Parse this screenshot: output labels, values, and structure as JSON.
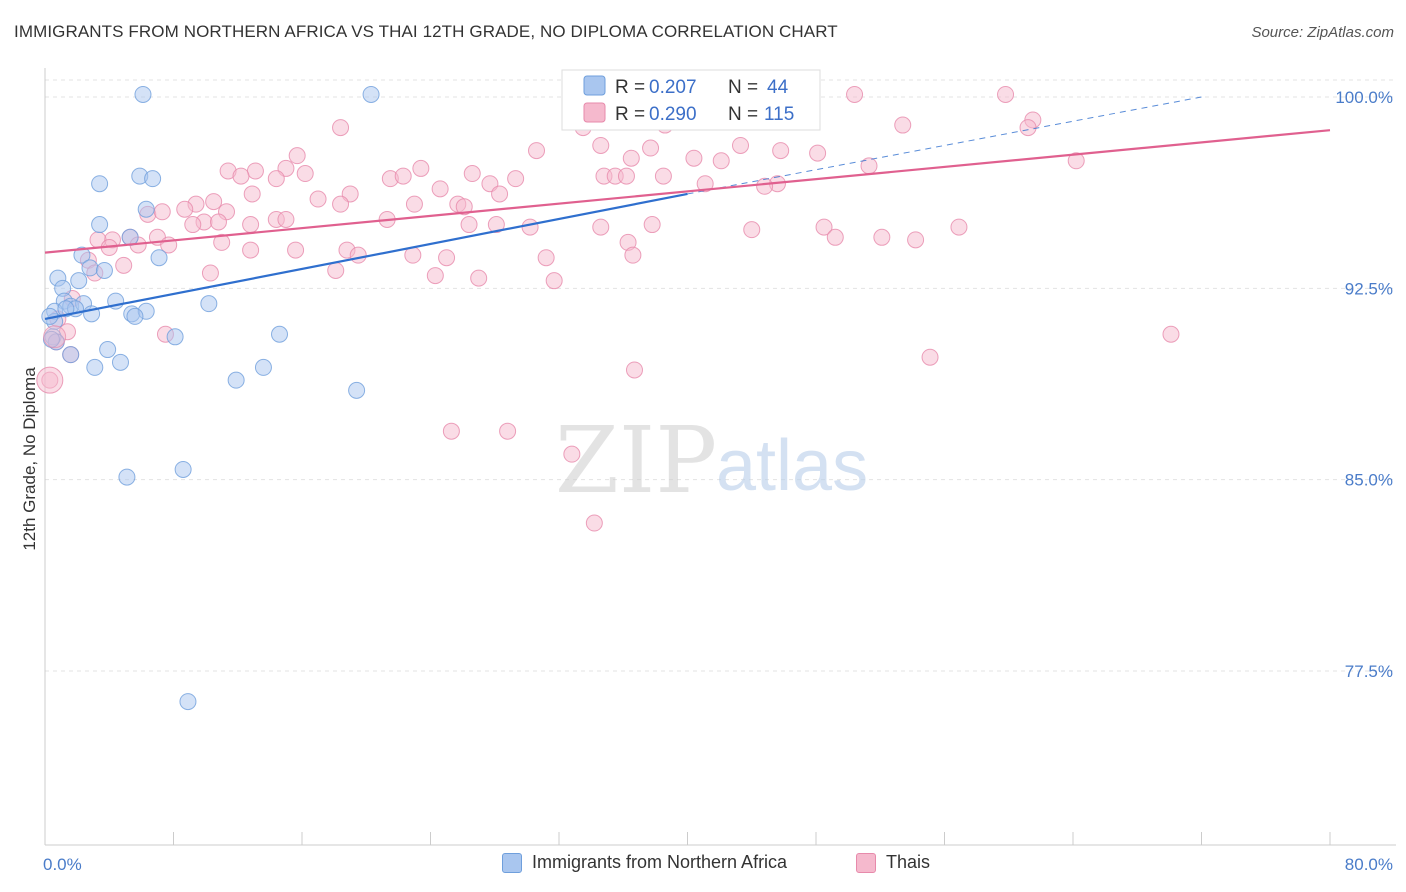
{
  "header": {
    "title": "IMMIGRANTS FROM NORTHERN AFRICA VS THAI 12TH GRADE, NO DIPLOMA CORRELATION CHART",
    "source": "Source: ZipAtlas.com"
  },
  "watermark": {
    "zip": "ZIP",
    "atlas": "atlas"
  },
  "colors": {
    "blue_fill": "#a9c6ef",
    "blue_stroke": "#6f9fdc",
    "blue_line": "#2f6fce",
    "pink_fill": "#f5b9cd",
    "pink_stroke": "#e78aab",
    "pink_line": "#e0608f",
    "axis_text": "#4a7cc9",
    "grid": "#e3e3e3"
  },
  "stats_box": {
    "rows": [
      {
        "r_label": "R = ",
        "r_value": "0.207",
        "n_label": "N = ",
        "n_value": "44"
      },
      {
        "r_label": "R = ",
        "r_value": "0.290",
        "n_label": "N = ",
        "n_value": "115"
      }
    ]
  },
  "legend": {
    "items": [
      {
        "label": "Immigrants from Northern Africa"
      },
      {
        "label": "Thais"
      }
    ]
  },
  "chart_data": {
    "type": "scatter",
    "title": "IMMIGRANTS FROM NORTHERN AFRICA VS THAI 12TH GRADE, NO DIPLOMA CORRELATION CHART",
    "xlabel": "",
    "ylabel": "12th Grade, No Diploma",
    "xlim": [
      0,
      80
    ],
    "ylim": [
      70,
      101.5
    ],
    "x_tick_labels": [
      {
        "value": 0,
        "label": "0.0%"
      },
      {
        "value": 80,
        "label": "80.0%"
      }
    ],
    "y_tick_labels": [
      {
        "value": 100,
        "label": "100.0%"
      },
      {
        "value": 92.5,
        "label": "92.5%"
      },
      {
        "value": 85,
        "label": "85.0%"
      },
      {
        "value": 77.5,
        "label": "77.5%"
      }
    ],
    "x_minor_ticks": [
      8,
      16,
      24,
      32,
      40,
      48,
      56,
      64,
      72,
      80
    ],
    "grid": true,
    "legend_position": "bottom",
    "series": [
      {
        "name": "Immigrants from Northern Africa",
        "color": "blue",
        "r": 0.207,
        "n": 44,
        "trend": {
          "x0": 0,
          "y0": 91.3,
          "x1": 40,
          "y1": 96.2,
          "dash_x1": 72,
          "dash_y1": 100
        },
        "points": [
          [
            6.1,
            100.1
          ],
          [
            20.3,
            100.1
          ],
          [
            3.4,
            96.6
          ],
          [
            5.9,
            96.9
          ],
          [
            6.7,
            96.8
          ],
          [
            6.3,
            95.6
          ],
          [
            3.4,
            95.0
          ],
          [
            5.3,
            94.5
          ],
          [
            7.1,
            93.7
          ],
          [
            2.3,
            93.8
          ],
          [
            2.8,
            93.3
          ],
          [
            3.7,
            93.2
          ],
          [
            0.8,
            92.9
          ],
          [
            2.1,
            92.8
          ],
          [
            1.1,
            92.5
          ],
          [
            1.2,
            92.0
          ],
          [
            1.6,
            91.8
          ],
          [
            2.4,
            91.9
          ],
          [
            1.9,
            91.7
          ],
          [
            0.6,
            91.6
          ],
          [
            1.3,
            91.7
          ],
          [
            4.4,
            92.0
          ],
          [
            5.4,
            91.5
          ],
          [
            6.3,
            91.6
          ],
          [
            10.2,
            91.9
          ],
          [
            2.9,
            91.5
          ],
          [
            5.6,
            91.4
          ],
          [
            0.6,
            91.2
          ],
          [
            0.3,
            91.4
          ],
          [
            0.5,
            90.6
          ],
          [
            0.7,
            90.4
          ],
          [
            14.6,
            90.7
          ],
          [
            8.1,
            90.6
          ],
          [
            3.9,
            90.1
          ],
          [
            1.6,
            89.9
          ],
          [
            4.7,
            89.6
          ],
          [
            3.1,
            89.4
          ],
          [
            13.6,
            89.4
          ],
          [
            11.9,
            88.9
          ],
          [
            19.4,
            88.5
          ],
          [
            8.6,
            85.4
          ],
          [
            5.1,
            85.1
          ],
          [
            8.9,
            76.3
          ],
          [
            0.4,
            90.5
          ]
        ]
      },
      {
        "name": "Thais",
        "color": "pink",
        "r": 0.29,
        "n": 115,
        "trend": {
          "x0": 0,
          "y0": 93.9,
          "x1": 80,
          "y1": 98.7
        },
        "points": [
          [
            32.9,
            100.1
          ],
          [
            41.6,
            100.1
          ],
          [
            50.4,
            100.1
          ],
          [
            59.8,
            100.1
          ],
          [
            39.4,
            99.4
          ],
          [
            47.7,
            99.1
          ],
          [
            61.5,
            99.1
          ],
          [
            18.4,
            98.8
          ],
          [
            33.5,
            98.8
          ],
          [
            38.6,
            98.9
          ],
          [
            53.4,
            98.9
          ],
          [
            61.2,
            98.8
          ],
          [
            34.6,
            98.1
          ],
          [
            37.7,
            98.0
          ],
          [
            43.3,
            98.1
          ],
          [
            45.8,
            97.9
          ],
          [
            48.1,
            97.8
          ],
          [
            36.5,
            97.6
          ],
          [
            40.4,
            97.6
          ],
          [
            30.6,
            97.9
          ],
          [
            15.7,
            97.7
          ],
          [
            42.1,
            97.5
          ],
          [
            51.3,
            97.3
          ],
          [
            64.2,
            97.5
          ],
          [
            15.0,
            97.2
          ],
          [
            23.4,
            97.2
          ],
          [
            26.6,
            97.0
          ],
          [
            11.4,
            97.1
          ],
          [
            13.1,
            97.1
          ],
          [
            12.2,
            96.9
          ],
          [
            14.4,
            96.8
          ],
          [
            16.2,
            97.0
          ],
          [
            21.5,
            96.8
          ],
          [
            22.3,
            96.9
          ],
          [
            29.3,
            96.8
          ],
          [
            34.8,
            96.9
          ],
          [
            35.5,
            96.9
          ],
          [
            36.2,
            96.9
          ],
          [
            45.6,
            96.6
          ],
          [
            44.8,
            96.5
          ],
          [
            41.1,
            96.6
          ],
          [
            38.5,
            96.9
          ],
          [
            27.7,
            96.6
          ],
          [
            24.6,
            96.4
          ],
          [
            28.3,
            96.2
          ],
          [
            19.0,
            96.2
          ],
          [
            17.0,
            96.0
          ],
          [
            18.4,
            95.8
          ],
          [
            23.0,
            95.8
          ],
          [
            25.7,
            95.8
          ],
          [
            26.1,
            95.7
          ],
          [
            12.9,
            96.2
          ],
          [
            10.5,
            95.9
          ],
          [
            9.4,
            95.8
          ],
          [
            8.7,
            95.6
          ],
          [
            11.3,
            95.5
          ],
          [
            6.4,
            95.4
          ],
          [
            7.3,
            95.5
          ],
          [
            14.4,
            95.2
          ],
          [
            15.0,
            95.2
          ],
          [
            9.9,
            95.1
          ],
          [
            9.2,
            95.0
          ],
          [
            10.8,
            95.1
          ],
          [
            12.8,
            95.0
          ],
          [
            21.3,
            95.2
          ],
          [
            26.4,
            95.0
          ],
          [
            28.1,
            95.0
          ],
          [
            30.2,
            94.9
          ],
          [
            34.6,
            94.9
          ],
          [
            37.8,
            95.0
          ],
          [
            44.0,
            94.8
          ],
          [
            48.5,
            94.9
          ],
          [
            56.9,
            94.9
          ],
          [
            49.2,
            94.5
          ],
          [
            52.1,
            94.5
          ],
          [
            54.2,
            94.4
          ],
          [
            36.3,
            94.3
          ],
          [
            5.3,
            94.5
          ],
          [
            4.2,
            94.4
          ],
          [
            3.3,
            94.4
          ],
          [
            7.0,
            94.5
          ],
          [
            5.8,
            94.2
          ],
          [
            7.7,
            94.2
          ],
          [
            11.0,
            94.3
          ],
          [
            12.8,
            94.0
          ],
          [
            15.6,
            94.0
          ],
          [
            18.8,
            94.0
          ],
          [
            19.5,
            93.8
          ],
          [
            22.9,
            93.8
          ],
          [
            25.0,
            93.7
          ],
          [
            31.2,
            93.7
          ],
          [
            36.6,
            93.8
          ],
          [
            2.7,
            93.6
          ],
          [
            4.9,
            93.4
          ],
          [
            3.1,
            93.1
          ],
          [
            18.1,
            93.2
          ],
          [
            10.3,
            93.1
          ],
          [
            24.3,
            93.0
          ],
          [
            27.0,
            92.9
          ],
          [
            31.7,
            92.8
          ],
          [
            1.7,
            92.1
          ],
          [
            0.8,
            91.3
          ],
          [
            1.4,
            90.8
          ],
          [
            0.7,
            90.4
          ],
          [
            7.5,
            90.7
          ],
          [
            70.1,
            90.7
          ],
          [
            55.1,
            89.8
          ],
          [
            1.6,
            89.9
          ],
          [
            36.7,
            89.3
          ],
          [
            0.3,
            88.9
          ],
          [
            25.3,
            86.9
          ],
          [
            28.8,
            86.9
          ],
          [
            32.8,
            86.0
          ],
          [
            34.2,
            83.3
          ],
          [
            4.0,
            94.1
          ]
        ]
      }
    ]
  }
}
